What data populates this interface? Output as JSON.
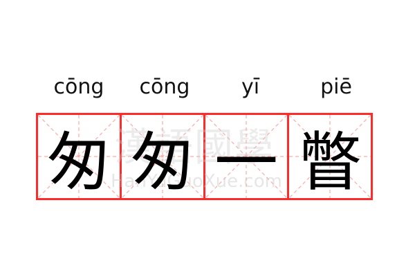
{
  "items": [
    {
      "pinyin": "cōng",
      "char": "匆"
    },
    {
      "pinyin": "cōng",
      "char": "匆"
    },
    {
      "pinyin": "yī",
      "char": "一"
    },
    {
      "pinyin": "piē",
      "char": "瞥"
    }
  ],
  "watermark": {
    "chinese": "漢語國學",
    "latin": "HanYuGuoXue.com"
  },
  "colors": {
    "border": "#ff2a2a",
    "guide": "#ffaaaa"
  }
}
